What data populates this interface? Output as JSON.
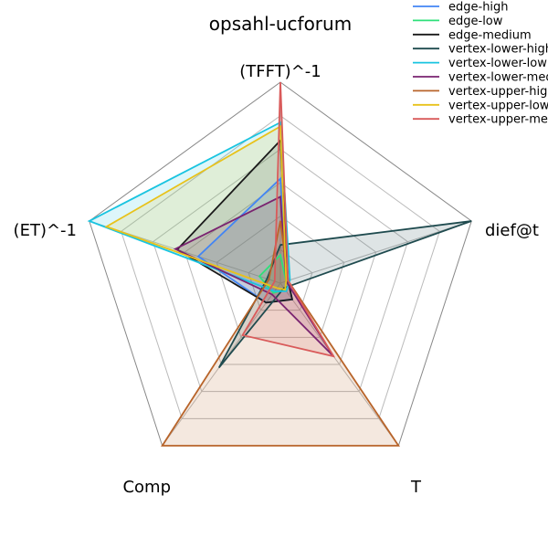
{
  "chart_data": {
    "type": "radar",
    "title": "opsahl-ucforum",
    "axes": [
      "(TFFT)^-1",
      "dief@t",
      "T",
      "Comp",
      "(ET)^-1"
    ],
    "range": [
      0,
      1
    ],
    "grid_levels": 6,
    "legend_position": "top-right",
    "series": [
      {
        "name": "edge-high",
        "color": "#4285f4",
        "values": [
          0.52,
          0.04,
          0.1,
          0.12,
          0.43
        ]
      },
      {
        "name": "edge-low",
        "color": "#2ee07a",
        "values": [
          0.14,
          0.03,
          0.04,
          0.06,
          0.11
        ]
      },
      {
        "name": "edge-medium",
        "color": "#1a1a1a",
        "values": [
          0.71,
          0.04,
          0.1,
          0.12,
          0.54
        ]
      },
      {
        "name": "vertex-lower-high",
        "color": "#1f4b4f",
        "values": [
          0.19,
          1.0,
          0.03,
          0.52,
          0.07
        ]
      },
      {
        "name": "vertex-lower-low",
        "color": "#19c4e0",
        "values": [
          0.8,
          0.05,
          0.05,
          0.05,
          1.0
        ]
      },
      {
        "name": "vertex-lower-medium",
        "color": "#7a2370",
        "values": [
          0.43,
          0.03,
          0.45,
          0.07,
          0.55
        ]
      },
      {
        "name": "vertex-upper-high",
        "color": "#b8642a",
        "values": [
          0.31,
          0.04,
          1.0,
          1.0,
          0.06
        ]
      },
      {
        "name": "vertex-upper-low",
        "color": "#e8c21a",
        "values": [
          0.78,
          0.03,
          0.04,
          0.03,
          0.91
        ]
      },
      {
        "name": "vertex-upper-medium",
        "color": "#d95a5a",
        "values": [
          1.0,
          0.04,
          0.45,
          0.32,
          0.03
        ]
      }
    ]
  }
}
